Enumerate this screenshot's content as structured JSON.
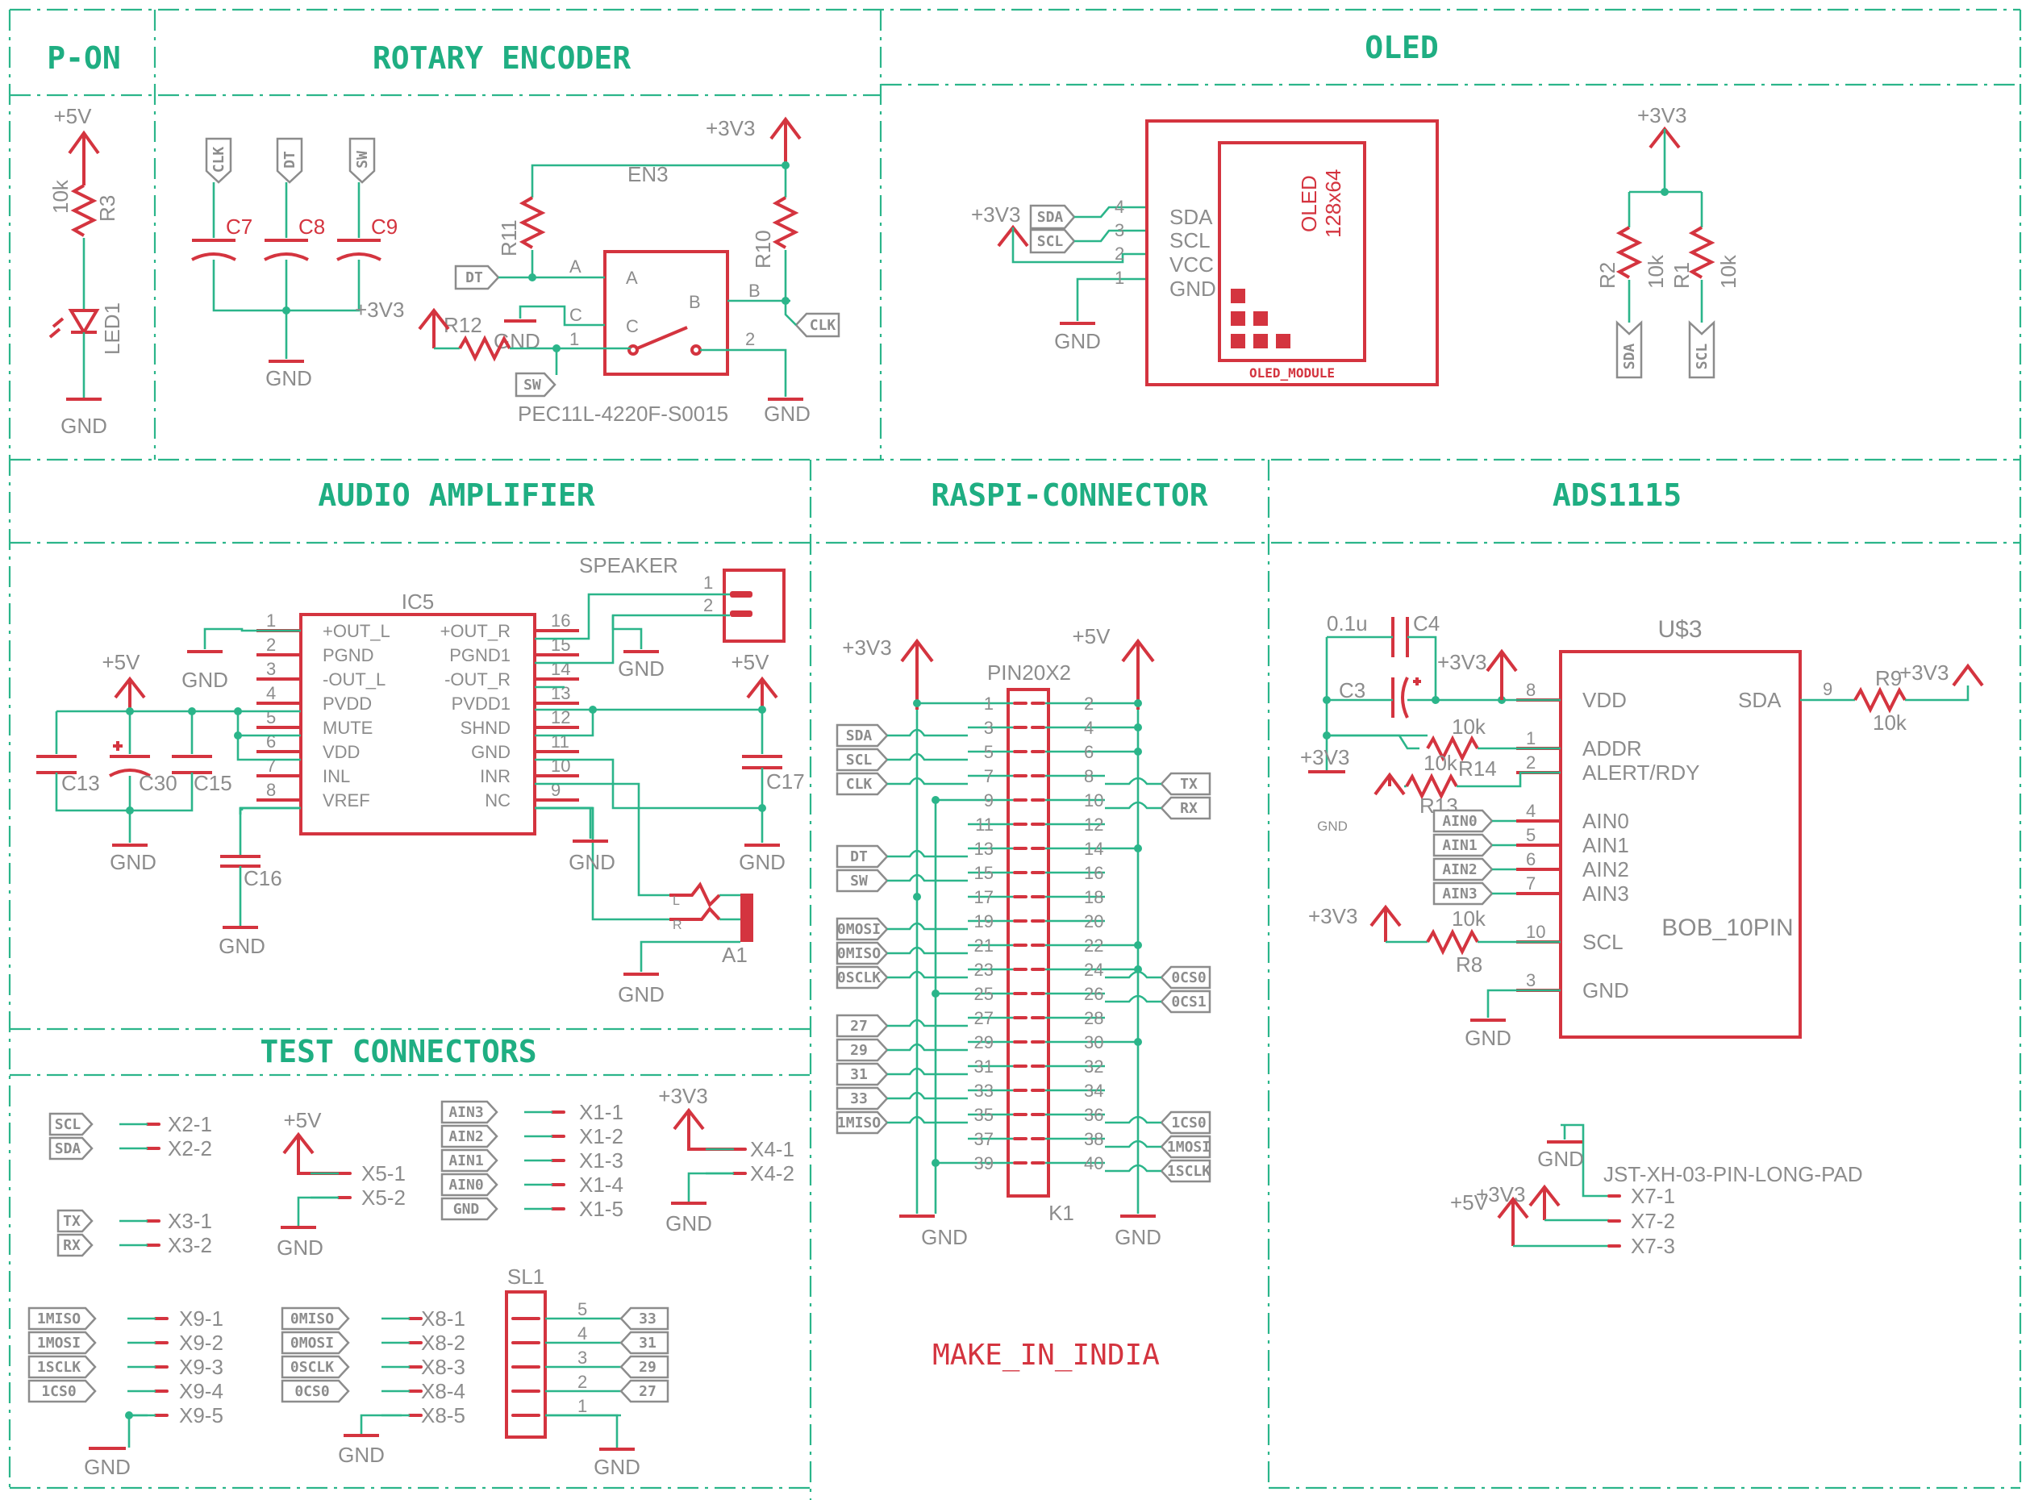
{
  "sections": {
    "pon": "P-ON",
    "rotary": "ROTARY ENCODER",
    "oled": "OLED",
    "audio": "AUDIO AMPLIFIER",
    "raspi": "RASPI-CONNECTOR",
    "ads": "ADS1115",
    "test": "TEST CONNECTORS"
  },
  "pon": {
    "supply": "+5V",
    "r3_val": "10k",
    "r3": "R3",
    "led": "LED1",
    "gnd": "GND"
  },
  "rotary": {
    "tags": [
      "CLK",
      "DT",
      "SW"
    ],
    "caps": [
      "C7",
      "C8",
      "C9"
    ],
    "gnd": "GND",
    "v33": "+3V3",
    "supply": "+3V3",
    "r11": "R11",
    "r10": "R10",
    "r12": "R12",
    "en": "EN3",
    "pinA": "A",
    "pinB": "B",
    "pinC": "C",
    "numA": "A",
    "numB": "B",
    "numC": "C",
    "num1": "1",
    "num2": "2",
    "dt": "DT",
    "clk": "CLK",
    "sw": "SW",
    "part": "PEC11L-4220F-S0015",
    "gnd2": "GND",
    "gnd3": "GND"
  },
  "oled": {
    "supply": "+3V3",
    "sda": "SDA",
    "scl": "SCL",
    "pins": [
      "SDA",
      "SCL",
      "VCC",
      "GND"
    ],
    "nums": [
      "4",
      "3",
      "2",
      "1"
    ],
    "gnd": "GND",
    "name": "OLED",
    "res": "128x64",
    "module": "OLED_MODULE",
    "pull_supply": "+3V3",
    "r2": "R2",
    "r1": "R1",
    "r2v": "10k",
    "r1v": "10k"
  },
  "audio": {
    "ic": "IC5",
    "speaker": "SPEAKER",
    "spk1": "1",
    "spk2": "2",
    "left_pins": [
      {
        "n": "1",
        "name": "+OUT_L"
      },
      {
        "n": "2",
        "name": "PGND"
      },
      {
        "n": "3",
        "name": "-OUT_L"
      },
      {
        "n": "4",
        "name": "PVDD"
      },
      {
        "n": "5",
        "name": "MUTE"
      },
      {
        "n": "6",
        "name": "VDD"
      },
      {
        "n": "7",
        "name": "INL"
      },
      {
        "n": "8",
        "name": "VREF"
      }
    ],
    "right_pins": [
      {
        "n": "16",
        "name": "+OUT_R"
      },
      {
        "n": "15",
        "name": "PGND1"
      },
      {
        "n": "14",
        "name": "-OUT_R"
      },
      {
        "n": "13",
        "name": "PVDD1"
      },
      {
        "n": "12",
        "name": "SHND"
      },
      {
        "n": "11",
        "name": "GND"
      },
      {
        "n": "10",
        "name": "INR"
      },
      {
        "n": "9",
        "name": "NC"
      }
    ],
    "v5a": "+5V",
    "v5b": "+5V",
    "c13": "C13",
    "c30": "C30",
    "c15": "C15",
    "c16": "C16",
    "c17": "C17",
    "gnd": "GND",
    "jackL": "L",
    "jackR": "R",
    "a1": "A1"
  },
  "raspi": {
    "v33": "+3V3",
    "v5": "+5V",
    "header": "PIN20X2",
    "k1": "K1",
    "odd": [
      "1",
      "3",
      "5",
      "7",
      "9",
      "11",
      "13",
      "15",
      "17",
      "19",
      "21",
      "23",
      "25",
      "27",
      "29",
      "31",
      "33",
      "35",
      "37",
      "39"
    ],
    "even": [
      "2",
      "4",
      "6",
      "8",
      "10",
      "12",
      "14",
      "16",
      "18",
      "20",
      "22",
      "24",
      "26",
      "28",
      "30",
      "32",
      "34",
      "36",
      "38",
      "40"
    ],
    "left_tags": [
      "SDA",
      "SCL",
      "CLK",
      "DT",
      "SW",
      "0MOSI",
      "0MISO",
      "0SCLK",
      "27",
      "29",
      "31",
      "33",
      "1MISO"
    ],
    "right_tags": [
      "TX",
      "RX",
      "0CS0",
      "0CS1",
      "1CS0",
      "1MOSI",
      "1SCLK"
    ],
    "gnd": "GND",
    "make": "MAKE_IN_INDIA"
  },
  "ads": {
    "c4v": "0.1u",
    "c4": "C4",
    "c3": "C3",
    "v33": "+3V3",
    "v33b": "+3V3",
    "v33c": "+3V3",
    "v33d": "+3V3",
    "gnd_small": "GND",
    "gnd": "GND",
    "chip": "U$3",
    "pkg": "BOB_10PIN",
    "pins_left": [
      {
        "n": "8",
        "name": "VDD"
      },
      {
        "n": "1",
        "name": "ADDR"
      },
      {
        "n": "2",
        "name": "ALERT/RDY"
      },
      {
        "n": "4",
        "name": "AIN0"
      },
      {
        "n": "5",
        "name": "AIN1"
      },
      {
        "n": "6",
        "name": "AIN2"
      },
      {
        "n": "7",
        "name": "AIN3"
      },
      {
        "n": "10",
        "name": "SCL"
      },
      {
        "n": "3",
        "name": "GND"
      }
    ],
    "sda": "SDA",
    "sda_n": "9",
    "r9": "R9",
    "r9v": "10k",
    "r14": "R14",
    "r14v": "10k",
    "r13": "R13",
    "r13v": "10k",
    "r8": "R8",
    "r8v": "10k",
    "ain_tags": [
      "AIN0",
      "AIN1",
      "AIN2",
      "AIN3"
    ],
    "jst": "JST-XH-03-PIN-LONG-PAD",
    "v5": "+5V",
    "v33j": "+3V3",
    "gndj": "GND",
    "x7": [
      "X7-1",
      "X7-2",
      "X7-3"
    ]
  },
  "test": {
    "x2_tags": [
      "SCL",
      "SDA"
    ],
    "x2": [
      "X2-1",
      "X2-2"
    ],
    "x3_tags": [
      "TX",
      "RX"
    ],
    "x3": [
      "X3-1",
      "X3-2"
    ],
    "x5_supply": "+5V",
    "x5": [
      "X5-1",
      "X5-2"
    ],
    "x5_gnd": "GND",
    "x1_tags": [
      "AIN3",
      "AIN2",
      "AIN1",
      "AIN0",
      "GND"
    ],
    "x1": [
      "X1-1",
      "X1-2",
      "X1-3",
      "X1-4",
      "X1-5"
    ],
    "x4_supply": "+3V3",
    "x4": [
      "X4-1",
      "X4-2"
    ],
    "x4_gnd": "GND",
    "x9_tags": [
      "1MISO",
      "1MOSI",
      "1SCLK",
      "1CS0"
    ],
    "x9": [
      "X9-1",
      "X9-2",
      "X9-3",
      "X9-4",
      "X9-5"
    ],
    "x9_gnd": "GND",
    "x8_tags": [
      "0MISO",
      "0MOSI",
      "0SCLK",
      "0CS0"
    ],
    "x8": [
      "X8-1",
      "X8-2",
      "X8-3",
      "X8-4",
      "X8-5"
    ],
    "x8_gnd": "GND",
    "sl1": "SL1",
    "sl_pins": [
      "5",
      "4",
      "3",
      "2",
      "1"
    ],
    "sl_tags": [
      "33",
      "31",
      "29",
      "27"
    ],
    "sl_gnd": "GND"
  }
}
